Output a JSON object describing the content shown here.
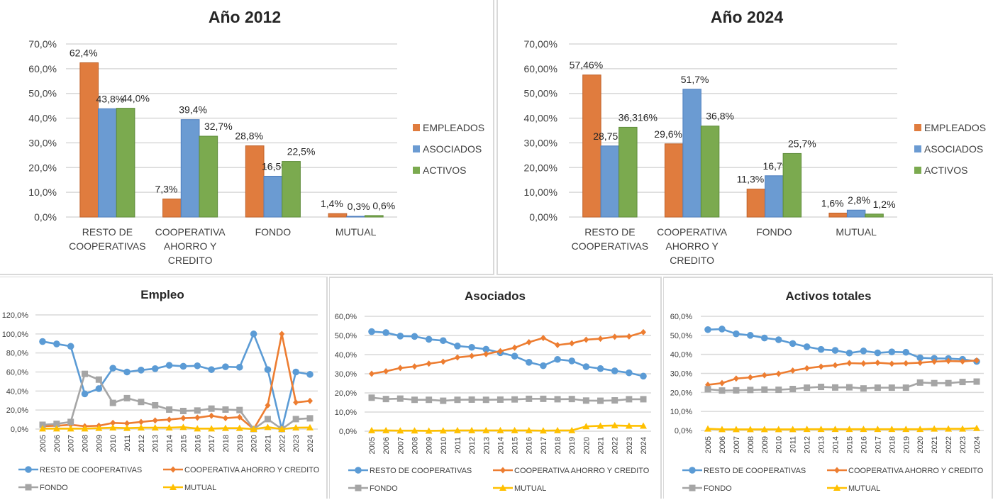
{
  "colors": {
    "empleados": "#E07C3E",
    "asociados": "#6B9BD2",
    "activos": "#7BAA4F",
    "resto": "#5B9BD5",
    "coop": "#ED7D31",
    "fondo": "#A5A5A5",
    "mutual": "#FFC000"
  },
  "chart_data": [
    {
      "id": "bar2012",
      "type": "bar",
      "title": "Año 2012",
      "categories": [
        [
          "RESTO DE",
          "COOPERATIVAS"
        ],
        [
          "COOPERATIVA",
          "AHORRO Y",
          "CREDITO"
        ],
        [
          "FONDO"
        ],
        [
          "MUTUAL"
        ]
      ],
      "series": [
        {
          "name": "EMPLEADOS",
          "values": [
            62.4,
            7.3,
            28.8,
            1.4
          ],
          "labels": [
            "62,4%",
            "7,3%",
            "28,8%",
            "1,4%"
          ]
        },
        {
          "name": "ASOCIADOS",
          "values": [
            43.8,
            39.4,
            16.5,
            0.3
          ],
          "labels": [
            "43,8%",
            "39,4%",
            "16,5%",
            "0,3%"
          ]
        },
        {
          "name": "ACTIVOS",
          "values": [
            44.0,
            32.7,
            22.5,
            0.6
          ],
          "labels": [
            "44,0%",
            "32,7%",
            "22,5%",
            "0,6%"
          ]
        }
      ],
      "yticks": [
        "0,0%",
        "10,0%",
        "20,0%",
        "30,0%",
        "40,0%",
        "50,0%",
        "60,0%",
        "70,0%"
      ],
      "ylim": [
        0,
        70
      ],
      "legend": "right",
      "grid": true
    },
    {
      "id": "bar2024",
      "type": "bar",
      "title": "Año 2024",
      "categories": [
        [
          "RESTO DE",
          "COOPERATIVAS"
        ],
        [
          "COOPERATIVA",
          "AHORRO Y",
          "CREDITO"
        ],
        [
          "FONDO"
        ],
        [
          "MUTUAL"
        ]
      ],
      "series": [
        {
          "name": "EMPLEADOS",
          "values": [
            57.46,
            29.6,
            11.3,
            1.6
          ],
          "labels": [
            "57,46%",
            "29,6%",
            "11,3%",
            "1,6%"
          ]
        },
        {
          "name": "ASOCIADOS",
          "values": [
            28.755,
            51.7,
            16.7,
            2.8
          ],
          "labels": [
            "28,755%",
            "51,7%",
            "16,7%",
            "2,8%"
          ]
        },
        {
          "name": "ACTIVOS",
          "values": [
            36.316,
            36.8,
            25.7,
            1.2
          ],
          "labels": [
            "36,316%",
            "36,8%",
            "25,7%",
            "1,2%"
          ]
        }
      ],
      "yticks": [
        "0,00%",
        "10,00%",
        "20,00%",
        "30,00%",
        "40,00%",
        "50,00%",
        "60,00%",
        "70,00%"
      ],
      "ylim": [
        0,
        70
      ],
      "legend": "right",
      "grid": true
    },
    {
      "id": "empleo",
      "type": "line",
      "title": "Empleo",
      "x": [
        "2005",
        "2006",
        "2007",
        "2008",
        "2009",
        "2010",
        "2011",
        "2012",
        "2013",
        "2014",
        "2015",
        "2016",
        "2017",
        "2018",
        "2019",
        "2020",
        "2021",
        "2022",
        "2023",
        "2024"
      ],
      "series": [
        {
          "name": "RESTO DE COOPERATIVAS",
          "marker": "circle",
          "values": [
            92,
            89.5,
            87,
            37,
            42.5,
            64,
            60,
            62,
            63.5,
            67,
            66,
            66.5,
            62.5,
            65.5,
            65,
            100,
            62.5,
            0,
            60,
            57.5
          ]
        },
        {
          "name": "COOPERATIVA AHORRO Y CREDITO",
          "marker": "diamond",
          "values": [
            3,
            3.5,
            4.5,
            3,
            3.5,
            6.5,
            6,
            7.5,
            9,
            10,
            11.5,
            12,
            14,
            11.5,
            12.5,
            0,
            25,
            100,
            28,
            29.6
          ]
        },
        {
          "name": "FONDO",
          "marker": "square",
          "values": [
            4.5,
            5.5,
            7.5,
            58,
            52,
            27.5,
            32.5,
            28.5,
            25,
            20.5,
            19,
            19.5,
            21.5,
            20.5,
            20,
            0,
            10.5,
            0,
            10.5,
            11.3
          ]
        },
        {
          "name": "MUTUAL",
          "marker": "triangle",
          "values": [
            0.5,
            0.5,
            0.5,
            0.5,
            1,
            1.5,
            1,
            1.5,
            1.5,
            1.5,
            2,
            0.5,
            0.5,
            1,
            1,
            0,
            2,
            0,
            1.5,
            1.6
          ]
        }
      ],
      "yticks": [
        "0,0%",
        "20,0%",
        "40,0%",
        "60,0%",
        "80,0%",
        "100,0%",
        "120,0%"
      ],
      "ylim": [
        0,
        120
      ],
      "legend": "bottom",
      "grid": true
    },
    {
      "id": "asociados",
      "type": "line",
      "title": "Asociados",
      "x": [
        "2005",
        "2006",
        "2007",
        "2008",
        "2009",
        "2010",
        "2011",
        "2012",
        "2013",
        "2014",
        "2015",
        "2016",
        "2017",
        "2018",
        "2019",
        "2020",
        "2021",
        "2022",
        "2023",
        "2024"
      ],
      "series": [
        {
          "name": "RESTO DE COOPERATIVAS",
          "marker": "circle",
          "values": [
            52,
            51.5,
            49.7,
            49.5,
            48,
            47.3,
            44.5,
            43.8,
            42.8,
            41,
            39.2,
            36,
            34.2,
            37.5,
            36.7,
            33.7,
            32.7,
            31.5,
            30.5,
            28.755
          ]
        },
        {
          "name": "COOPERATIVA AHORRO Y CREDITO",
          "marker": "diamond",
          "values": [
            30,
            31.3,
            33,
            33.8,
            35.3,
            36.3,
            38.5,
            39.3,
            40.3,
            41.8,
            43.6,
            46.5,
            48.7,
            45,
            45.9,
            47.8,
            48.3,
            49.3,
            49.5,
            51.7
          ]
        },
        {
          "name": "FONDO",
          "marker": "square",
          "values": [
            17.5,
            16.8,
            17,
            16.4,
            16.4,
            15.9,
            16.4,
            16.5,
            16.4,
            16.5,
            16.6,
            16.9,
            16.9,
            16.7,
            16.8,
            16,
            15.9,
            16.1,
            16.7,
            16.7
          ]
        },
        {
          "name": "MUTUAL",
          "marker": "triangle",
          "values": [
            0.4,
            0.4,
            0.3,
            0.3,
            0.2,
            0.3,
            0.4,
            0.4,
            0.4,
            0.4,
            0.4,
            0.4,
            0.3,
            0.4,
            0.4,
            2.5,
            2.8,
            3.0,
            2.8,
            2.8
          ]
        }
      ],
      "yticks": [
        "0,0%",
        "10,0%",
        "20,0%",
        "30,0%",
        "40,0%",
        "50,0%",
        "60,0%"
      ],
      "ylim": [
        0,
        60
      ],
      "legend": "bottom",
      "grid": true
    },
    {
      "id": "activos",
      "type": "line",
      "title": "Activos totales",
      "x": [
        "2005",
        "2006",
        "2007",
        "2008",
        "2009",
        "2010",
        "2011",
        "2012",
        "2013",
        "2014",
        "2015",
        "2016",
        "2017",
        "2018",
        "2019",
        "2020",
        "2021",
        "2022",
        "2023",
        "2024"
      ],
      "series": [
        {
          "name": "RESTO DE COOPERATIVAS",
          "marker": "circle",
          "values": [
            53,
            53.3,
            50.8,
            50,
            48.6,
            47.7,
            45.7,
            44,
            42.6,
            42.1,
            40.7,
            41.8,
            40.8,
            41.3,
            41.1,
            38.2,
            37.9,
            37.8,
            37.4,
            36.3
          ]
        },
        {
          "name": "COOPERATIVA AHORRO Y CREDITO",
          "marker": "diamond",
          "values": [
            24,
            24.9,
            27.3,
            27.9,
            29,
            29.8,
            31.5,
            32.7,
            33.6,
            34.3,
            35.4,
            35.2,
            35.6,
            35.1,
            35.3,
            35.6,
            36.2,
            36.5,
            36.3,
            36.8
          ]
        },
        {
          "name": "FONDO",
          "marker": "square",
          "values": [
            21.7,
            21,
            21.1,
            21.3,
            21.5,
            21.4,
            21.8,
            22.5,
            22.9,
            22.6,
            22.7,
            22.1,
            22.5,
            22.5,
            22.5,
            25.2,
            24.9,
            24.9,
            25.5,
            25.7
          ]
        },
        {
          "name": "MUTUAL",
          "marker": "triangle",
          "values": [
            0.9,
            0.6,
            0.6,
            0.6,
            0.6,
            0.6,
            0.6,
            0.7,
            0.7,
            0.7,
            0.7,
            0.7,
            0.7,
            0.7,
            0.7,
            0.7,
            0.9,
            0.9,
            0.9,
            1.2
          ]
        }
      ],
      "yticks": [
        "0,0%",
        "10,0%",
        "20,0%",
        "30,0%",
        "40,0%",
        "50,0%",
        "60,0%"
      ],
      "ylim": [
        0,
        60
      ],
      "legend": "bottom",
      "grid": true
    }
  ]
}
